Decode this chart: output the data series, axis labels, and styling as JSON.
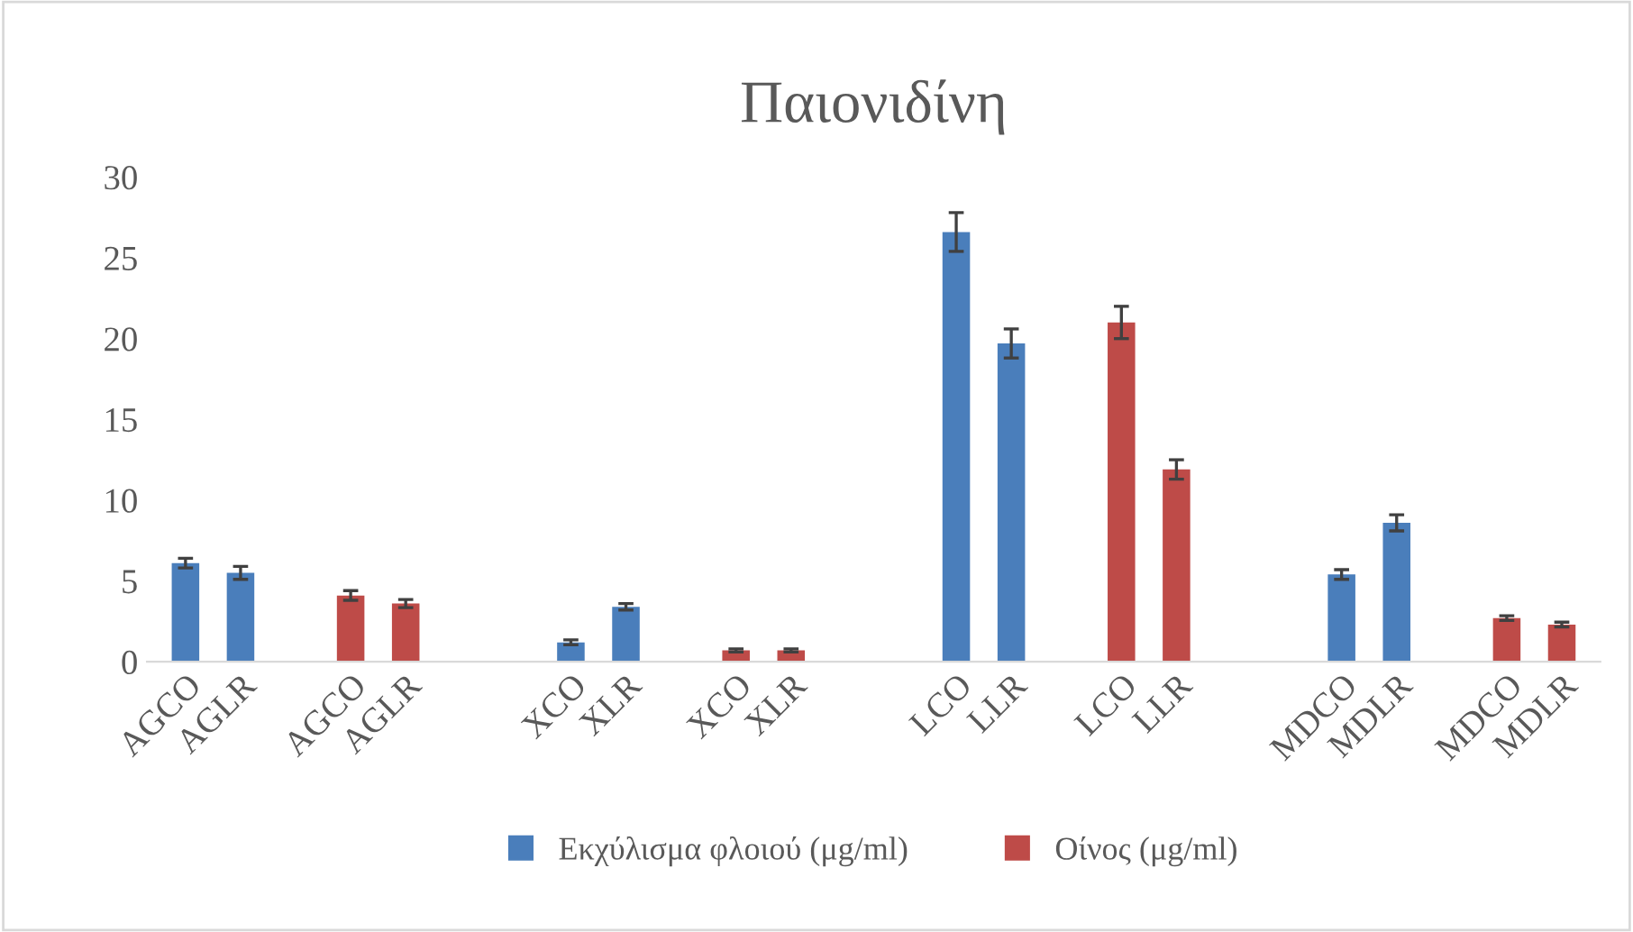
{
  "chart_data": {
    "type": "bar",
    "title": "Παιονιδίνη",
    "categories": [
      "AGCO",
      "AGLR",
      null,
      "AGCO",
      "AGLR",
      null,
      null,
      "XCO",
      "XLR",
      null,
      "XCO",
      "XLR",
      null,
      null,
      "LCO",
      "LLR",
      null,
      "LCO",
      "LLR",
      null,
      null,
      "MDCO",
      "MDLR",
      null,
      "MDCO",
      "MDLR"
    ],
    "series": [
      {
        "name": "Εκχύλισμα φλοιού (μg/ml)",
        "color": "#4a7ebb",
        "values": [
          6.1,
          5.5,
          null,
          null,
          null,
          null,
          null,
          1.2,
          3.4,
          null,
          null,
          null,
          null,
          null,
          26.6,
          19.7,
          null,
          null,
          null,
          null,
          null,
          5.4,
          8.6,
          null,
          null,
          null
        ],
        "errors": [
          0.3,
          0.4,
          null,
          null,
          null,
          null,
          null,
          0.15,
          0.2,
          null,
          null,
          null,
          null,
          null,
          1.2,
          0.9,
          null,
          null,
          null,
          null,
          null,
          0.3,
          0.5,
          null,
          null,
          null
        ]
      },
      {
        "name": "Οίνος (μg/ml)",
        "color": "#be4b48",
        "values": [
          null,
          null,
          null,
          4.1,
          3.6,
          null,
          null,
          null,
          null,
          null,
          0.7,
          0.7,
          null,
          null,
          null,
          null,
          null,
          21.0,
          11.9,
          null,
          null,
          null,
          null,
          null,
          2.7,
          2.3
        ],
        "errors": [
          null,
          null,
          null,
          0.3,
          0.25,
          null,
          null,
          null,
          null,
          null,
          0.1,
          0.1,
          null,
          null,
          null,
          null,
          null,
          1.0,
          0.6,
          null,
          null,
          null,
          null,
          null,
          0.15,
          0.15
        ]
      }
    ],
    "ylim": [
      0,
      30
    ],
    "yticks": [
      0,
      5,
      10,
      15,
      20,
      25,
      30
    ],
    "grid": false,
    "legend": "bottom"
  }
}
